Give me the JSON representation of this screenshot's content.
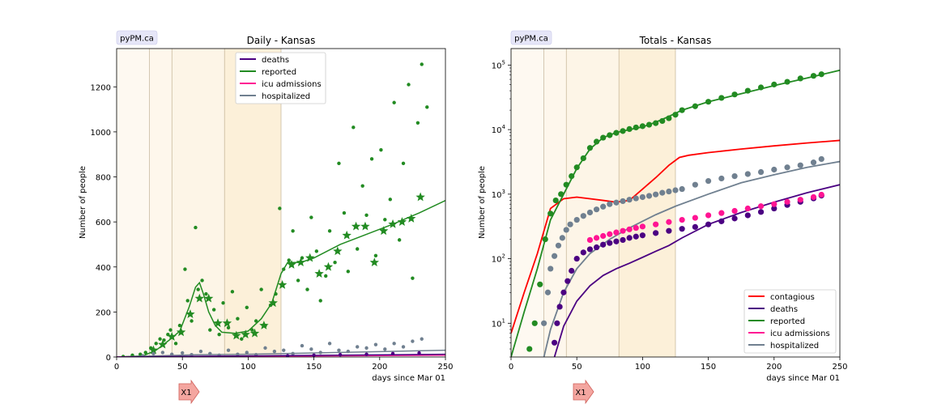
{
  "colors": {
    "deaths": "#4b0082",
    "reported": "#228b22",
    "icu": "#ff1493",
    "hospitalized": "#708090",
    "contagious": "#ff0000",
    "badge_bg": "#e6e6f8",
    "arrow_fill": "#f4a6a0",
    "arrow_stroke": "#d0605a"
  },
  "chart_data": [
    {
      "type": "scatter",
      "badge": "pyPM.ca",
      "title": "Daily - Kansas",
      "xlabel": "days since Mar 01",
      "ylabel": "Number of people",
      "xlim": [
        0,
        250
      ],
      "ylim": [
        0,
        1370
      ],
      "xticks": [
        "0",
        "50",
        "100",
        "150",
        "200",
        "250"
      ],
      "yticks": [
        "0",
        "200",
        "400",
        "600",
        "800",
        "1000",
        "1200"
      ],
      "grid": false,
      "legend_position": "top-center",
      "legend": [
        "deaths",
        "reported",
        "icu admissions",
        "hospitalized"
      ],
      "shaded_periods": [
        [
          0,
          25,
          0.1
        ],
        [
          25,
          42,
          0.14
        ],
        [
          42,
          82,
          0.18
        ],
        [
          82,
          125,
          0.28
        ]
      ],
      "marker_label": "X1",
      "marker_x": 52,
      "series": [
        {
          "name": "reported",
          "kind": "line",
          "x": [
            0,
            20,
            30,
            40,
            48,
            55,
            60,
            63,
            66,
            70,
            75,
            80,
            90,
            100,
            110,
            118,
            125,
            130,
            140,
            150,
            170,
            190,
            210,
            230,
            250
          ],
          "y": [
            0,
            5,
            30,
            75,
            115,
            220,
            310,
            330,
            280,
            200,
            140,
            110,
            105,
            115,
            170,
            240,
            370,
            420,
            420,
            440,
            500,
            545,
            590,
            640,
            695
          ]
        },
        {
          "name": "reported",
          "kind": "stars",
          "x": [
            28,
            35,
            42,
            49,
            56,
            63,
            70,
            77,
            84,
            91,
            98,
            105,
            112,
            119,
            126,
            133,
            140,
            147,
            154,
            161,
            168,
            175,
            182,
            189,
            196,
            203,
            210,
            217,
            224,
            231
          ],
          "y": [
            30,
            55,
            90,
            110,
            190,
            260,
            260,
            150,
            150,
            95,
            100,
            105,
            140,
            240,
            320,
            410,
            420,
            440,
            370,
            400,
            470,
            540,
            580,
            580,
            420,
            560,
            590,
            600,
            615,
            710
          ]
        },
        {
          "name": "reported",
          "kind": "dots",
          "x": [
            5,
            12,
            18,
            22,
            26,
            30,
            33,
            36,
            39,
            41,
            45,
            48,
            52,
            54,
            57,
            60,
            62,
            65,
            68,
            71,
            74,
            78,
            81,
            85,
            88,
            92,
            95,
            99,
            103,
            106,
            110,
            113,
            117,
            121,
            124,
            127,
            131,
            134,
            138,
            141,
            145,
            148,
            152,
            155,
            159,
            162,
            166,
            169,
            173,
            176,
            180,
            183,
            187,
            190,
            194,
            197,
            201,
            204,
            208,
            211,
            215,
            218,
            222,
            225,
            229,
            232,
            236
          ],
          "y": [
            2,
            8,
            12,
            20,
            40,
            60,
            80,
            75,
            100,
            120,
            60,
            140,
            390,
            250,
            160,
            575,
            300,
            340,
            280,
            120,
            210,
            100,
            240,
            130,
            290,
            170,
            80,
            220,
            120,
            160,
            300,
            140,
            230,
            280,
            660,
            390,
            430,
            560,
            340,
            440,
            300,
            620,
            470,
            250,
            360,
            560,
            420,
            860,
            640,
            380,
            1020,
            480,
            760,
            630,
            880,
            450,
            920,
            610,
            700,
            1130,
            520,
            860,
            1210,
            350,
            1040,
            1300,
            1110
          ]
        },
        {
          "name": "hospitalized",
          "kind": "line",
          "x": [
            0,
            30,
            60,
            100,
            150,
            200,
            250
          ],
          "y": [
            0,
            5,
            10,
            12,
            18,
            24,
            30
          ]
        },
        {
          "name": "hospitalized",
          "kind": "dots",
          "x": [
            20,
            28,
            35,
            42,
            50,
            57,
            64,
            71,
            78,
            85,
            92,
            99,
            106,
            113,
            120,
            127,
            134,
            141,
            148,
            155,
            162,
            169,
            176,
            183,
            190,
            197,
            204,
            211,
            218,
            225,
            232
          ],
          "y": [
            5,
            15,
            20,
            12,
            18,
            10,
            25,
            15,
            8,
            30,
            12,
            20,
            10,
            40,
            25,
            30,
            15,
            50,
            35,
            20,
            60,
            30,
            25,
            45,
            40,
            55,
            35,
            60,
            45,
            70,
            80
          ]
        },
        {
          "name": "icu admissions",
          "kind": "line",
          "x": [
            0,
            100,
            250
          ],
          "y": [
            0,
            3,
            8
          ]
        },
        {
          "name": "deaths",
          "kind": "line",
          "x": [
            0,
            100,
            250
          ],
          "y": [
            0,
            5,
            12
          ]
        },
        {
          "name": "deaths",
          "kind": "dots",
          "x": [
            130,
            150,
            170,
            190,
            210,
            230
          ],
          "y": [
            5,
            8,
            10,
            12,
            15,
            18
          ]
        }
      ]
    },
    {
      "type": "scatter",
      "badge": "pyPM.ca",
      "title": "Totals - Kansas",
      "xlabel": "days since Mar 01",
      "ylabel": "Number of people",
      "xlim": [
        0,
        250
      ],
      "ylim": [
        3,
        180000
      ],
      "log_y": true,
      "xticks": [
        "0",
        "50",
        "100",
        "150",
        "200",
        "250"
      ],
      "yticks_exp": [
        "1",
        "2",
        "3",
        "4",
        "5"
      ],
      "ytick_base": "10",
      "grid": false,
      "legend_position": "bottom-right",
      "legend": [
        "contagious",
        "deaths",
        "reported",
        "icu admissions",
        "hospitalized"
      ],
      "shaded_periods": [
        [
          0,
          25,
          0.1
        ],
        [
          25,
          42,
          0.14
        ],
        [
          42,
          82,
          0.18
        ],
        [
          82,
          125,
          0.28
        ]
      ],
      "marker_label": "X1",
      "marker_x": 52,
      "series": [
        {
          "name": "contagious",
          "kind": "line",
          "x": [
            0,
            10,
            20,
            30,
            40,
            50,
            60,
            70,
            80,
            90,
            100,
            110,
            120,
            128,
            135,
            150,
            175,
            200,
            225,
            250
          ],
          "y": [
            7,
            30,
            120,
            600,
            850,
            900,
            850,
            800,
            750,
            800,
            1200,
            1800,
            2800,
            3700,
            4000,
            4400,
            5000,
            5600,
            6200,
            6800
          ]
        },
        {
          "name": "reported",
          "kind": "line",
          "x": [
            0,
            10,
            20,
            30,
            40,
            50,
            60,
            70,
            80,
            90,
            100,
            110,
            120,
            130,
            150,
            175,
            200,
            225,
            250
          ],
          "y": [
            3,
            15,
            70,
            400,
            1000,
            2500,
            5000,
            7500,
            9000,
            10000,
            11000,
            13000,
            16000,
            20000,
            27000,
            36000,
            48000,
            63000,
            83000
          ]
        },
        {
          "name": "reported",
          "kind": "dots",
          "x": [
            14,
            18,
            22,
            26,
            30,
            34,
            38,
            42,
            46,
            50,
            55,
            60,
            65,
            70,
            75,
            80,
            85,
            90,
            95,
            100,
            105,
            110,
            115,
            120,
            125,
            130,
            140,
            150,
            160,
            170,
            180,
            190,
            200,
            210,
            220,
            230,
            236
          ],
          "y": [
            4,
            10,
            40,
            200,
            500,
            800,
            1000,
            1400,
            1900,
            2600,
            3600,
            5200,
            6500,
            7500,
            8200,
            8900,
            9500,
            10200,
            10800,
            11300,
            11900,
            12600,
            13600,
            15000,
            17000,
            20000,
            23000,
            27000,
            31000,
            35000,
            40000,
            45000,
            50000,
            55000,
            62000,
            68000,
            72000
          ]
        },
        {
          "name": "hospitalized",
          "kind": "line",
          "x": [
            25,
            30,
            40,
            50,
            60,
            75,
            90,
            100,
            110,
            125,
            150,
            175,
            200,
            225,
            250
          ],
          "y": [
            3,
            8,
            30,
            70,
            120,
            200,
            300,
            380,
            480,
            650,
            1000,
            1500,
            2000,
            2600,
            3200
          ]
        },
        {
          "name": "hospitalized",
          "kind": "dots",
          "x": [
            25,
            28,
            30,
            33,
            36,
            39,
            42,
            45,
            50,
            55,
            60,
            65,
            70,
            75,
            80,
            85,
            90,
            95,
            100,
            105,
            110,
            115,
            120,
            125,
            130,
            140,
            150,
            160,
            170,
            180,
            190,
            200,
            210,
            220,
            230,
            236
          ],
          "y": [
            10,
            30,
            70,
            110,
            160,
            210,
            280,
            340,
            400,
            460,
            520,
            580,
            640,
            700,
            740,
            780,
            820,
            860,
            900,
            940,
            990,
            1050,
            1100,
            1150,
            1200,
            1400,
            1600,
            1750,
            1900,
            2050,
            2200,
            2400,
            2600,
            2800,
            3100,
            3500
          ]
        },
        {
          "name": "deaths",
          "kind": "line",
          "x": [
            33,
            40,
            50,
            60,
            70,
            80,
            90,
            100,
            110,
            120,
            130,
            150,
            175,
            200,
            225,
            250
          ],
          "y": [
            3,
            9,
            22,
            38,
            55,
            70,
            85,
            105,
            130,
            160,
            210,
            340,
            520,
            750,
            1050,
            1400
          ]
        },
        {
          "name": "deaths",
          "kind": "dots",
          "x": [
            33,
            35,
            37,
            40,
            43,
            46,
            50,
            55,
            60,
            65,
            70,
            75,
            80,
            85,
            90,
            95,
            100,
            110,
            120,
            130,
            140,
            150,
            160,
            170,
            180,
            190,
            200,
            210,
            220,
            230,
            236
          ],
          "y": [
            5,
            10,
            18,
            30,
            45,
            65,
            100,
            125,
            140,
            150,
            165,
            175,
            185,
            195,
            210,
            220,
            230,
            250,
            270,
            290,
            310,
            340,
            380,
            420,
            470,
            530,
            600,
            680,
            760,
            860,
            950
          ]
        },
        {
          "name": "icu admissions",
          "kind": "dots",
          "x": [
            60,
            65,
            70,
            75,
            80,
            85,
            90,
            95,
            100,
            110,
            120,
            130,
            140,
            150,
            160,
            170,
            180,
            190,
            200,
            210,
            220,
            230,
            236
          ],
          "y": [
            195,
            210,
            225,
            240,
            255,
            270,
            285,
            300,
            315,
            340,
            370,
            400,
            430,
            470,
            510,
            550,
            600,
            650,
            700,
            760,
            820,
            900,
            980
          ]
        }
      ]
    }
  ]
}
